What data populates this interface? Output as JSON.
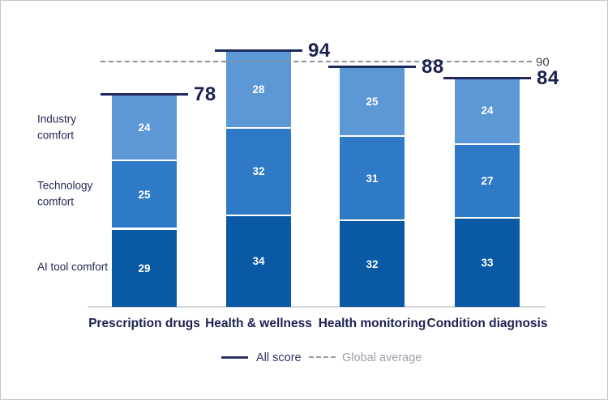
{
  "chart_data": {
    "type": "bar",
    "subtype": "stacked",
    "categories": [
      "Prescription drugs",
      "Health & wellness",
      "Health monitoring",
      "Condition diagnosis"
    ],
    "series": [
      {
        "name": "AI tool comfort",
        "color": "#0a59a4",
        "values": [
          29,
          34,
          32,
          33
        ]
      },
      {
        "name": "Technology comfort",
        "color": "#2f7ac6",
        "values": [
          25,
          32,
          31,
          27
        ]
      },
      {
        "name": "Industry comfort",
        "color": "#5c97d6",
        "values": [
          24,
          28,
          25,
          24
        ]
      }
    ],
    "totals": [
      78,
      94,
      88,
      84
    ],
    "global_average": 90,
    "global_average_label": "90",
    "ylim": [
      0,
      100
    ],
    "grid": false,
    "legend_position": "bottom",
    "legend": [
      {
        "label": "All score",
        "style": "solid"
      },
      {
        "label": "Global average",
        "style": "dashed"
      }
    ]
  },
  "colors": {
    "score_line": "#20295b",
    "score_text": "#1b2250",
    "global_average_line": "#90939f",
    "global_average_text": "#45454e",
    "axis": "#d8d9dc",
    "segment_value_text": "#ffffff",
    "background": "#ffffff"
  }
}
